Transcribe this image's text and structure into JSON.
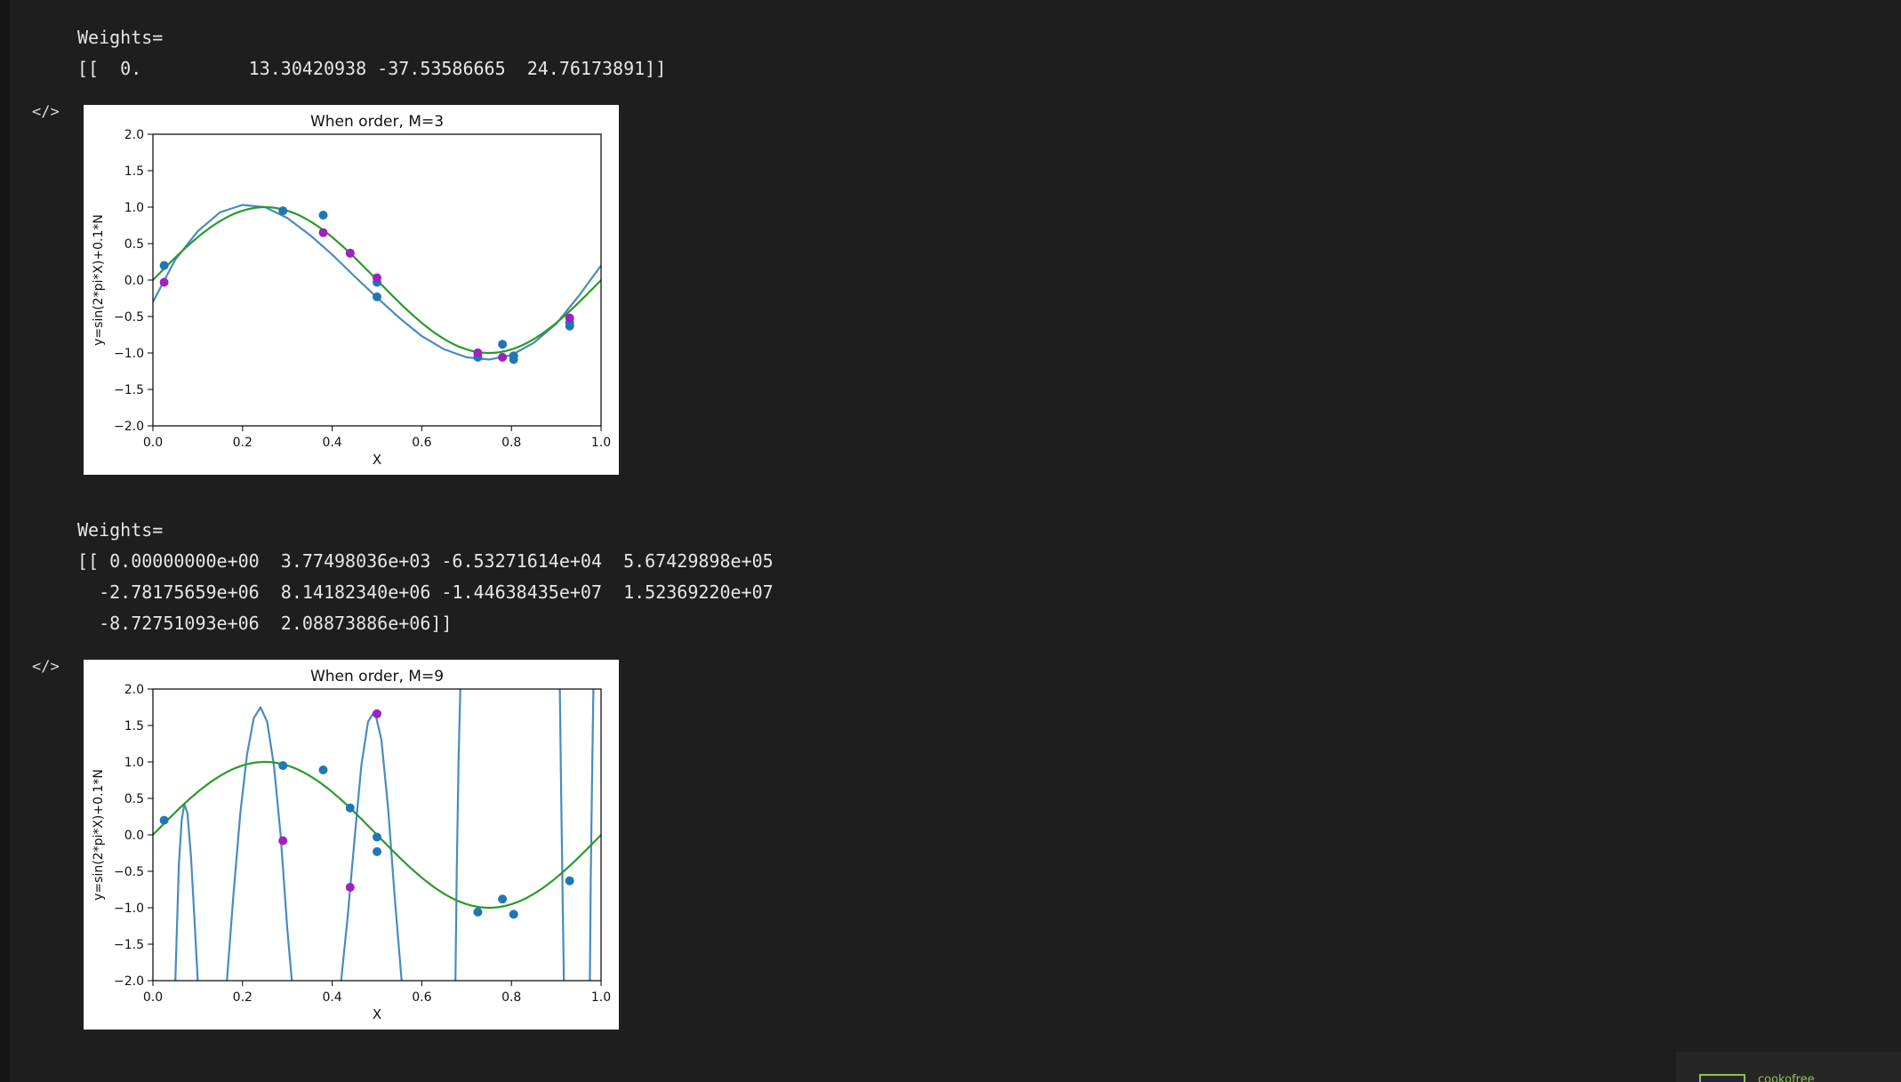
{
  "cell1": {
    "lines": [
      "Weights=",
      "[[  0.          13.30420938 -37.53586665  24.76173891]]"
    ],
    "toggle_icon": "</>"
  },
  "cell2": {
    "lines": [
      "Weights=",
      "[[ 0.00000000e+00  3.77498036e+03 -6.53271614e+04  5.67429898e+05",
      "  -2.78175659e+06  8.14182340e+06 -1.44638435e+07  1.52369220e+07",
      "  -8.72751093e+06  2.08873886e+06]]"
    ],
    "toggle_icon": "</>"
  },
  "colors": {
    "background": "#1e1e1e",
    "gutter": "#151515",
    "fit_curve": "#4a8bbf",
    "true_curve": "#2a9a2a",
    "train_points": "#1f77b4",
    "test_points": "#a020c0",
    "accent": "#8bc34a"
  },
  "corner_widget": {
    "label": "cookofree",
    "icon": "logo-icon"
  },
  "chart_data": [
    {
      "type": "line",
      "title": "When order, M=3",
      "xlabel": "X",
      "ylabel": "y=sin(2*pi*X)+0.1*N",
      "xlim": [
        0.0,
        1.0
      ],
      "ylim": [
        -2.0,
        2.0
      ],
      "xticks": [
        "0.0",
        "0.2",
        "0.4",
        "0.6",
        "0.8",
        "1.0"
      ],
      "yticks": [
        "2.0",
        "1.5",
        "1.0",
        "0.5",
        "0.0",
        "−0.5",
        "−1.0",
        "−1.5",
        "−2.0"
      ],
      "grid": false,
      "fit_weights": [
        0.0,
        13.30420938,
        -37.53586665,
        24.76173891
      ],
      "series": [
        {
          "kind": "fit-curve",
          "color": "#4a8bbf",
          "x": [
            0.0,
            0.05,
            0.1,
            0.15,
            0.2,
            0.25,
            0.3,
            0.35,
            0.4,
            0.45,
            0.5,
            0.55,
            0.6,
            0.65,
            0.7,
            0.75,
            0.8,
            0.85,
            0.9,
            0.95,
            1.0
          ],
          "y": [
            -0.3,
            0.28,
            0.67,
            0.93,
            1.03,
            1.0,
            0.85,
            0.62,
            0.35,
            0.05,
            -0.24,
            -0.52,
            -0.77,
            -0.95,
            -1.06,
            -1.09,
            -1.03,
            -0.86,
            -0.6,
            -0.22,
            0.2
          ]
        },
        {
          "kind": "true-curve",
          "color": "#2a9a2a",
          "function": "sin(2*pi*X)"
        },
        {
          "kind": "train-points",
          "color": "#1f77b4",
          "x": [
            0.025,
            0.29,
            0.38,
            0.44,
            0.5,
            0.5,
            0.725,
            0.725,
            0.78,
            0.805,
            0.805,
            0.93,
            0.93
          ],
          "y": [
            0.2,
            0.95,
            0.89,
            0.37,
            -0.03,
            -0.23,
            -1.0,
            -1.06,
            -0.88,
            -1.04,
            -1.09,
            -0.58,
            -0.63
          ]
        },
        {
          "kind": "test-points",
          "color": "#a020c0",
          "x": [
            0.025,
            0.38,
            0.44,
            0.5,
            0.725,
            0.78,
            0.93
          ],
          "y": [
            -0.03,
            0.65,
            0.37,
            0.03,
            -1.0,
            -1.06,
            -0.52
          ]
        }
      ]
    },
    {
      "type": "line",
      "title": "When order, M=9",
      "xlabel": "X",
      "ylabel": "y=sin(2*pi*X)+0.1*N",
      "xlim": [
        0.0,
        1.0
      ],
      "ylim": [
        -2.0,
        2.0
      ],
      "xticks": [
        "0.0",
        "0.2",
        "0.4",
        "0.6",
        "0.8",
        "1.0"
      ],
      "yticks": [
        "2.0",
        "1.5",
        "1.0",
        "0.5",
        "0.0",
        "−0.5",
        "−1.0",
        "−1.5",
        "−2.0"
      ],
      "grid": false,
      "fit_weights": [
        0.0,
        3774.98036,
        -65327.1614,
        567429.898,
        -2781756.59,
        8141823.4,
        -14463843.5,
        15236922.0,
        -8727510.93,
        2088738.86
      ],
      "series": [
        {
          "kind": "fit-curve",
          "color": "#4a8bbf",
          "segments": [
            {
              "x": [
                0.05,
                0.058,
                0.064,
                0.07,
                0.077,
                0.085,
                0.093,
                0.1
              ],
              "y": [
                -2.0,
                -0.4,
                0.2,
                0.42,
                0.3,
                -0.3,
                -1.2,
                -2.0
              ]
            },
            {
              "x": [
                0.165,
                0.18,
                0.195,
                0.21,
                0.225,
                0.24,
                0.255,
                0.27,
                0.285,
                0.3,
                0.31
              ],
              "y": [
                -2.0,
                -0.8,
                0.3,
                1.1,
                1.6,
                1.75,
                1.55,
                0.95,
                0.0,
                -1.3,
                -2.0
              ]
            },
            {
              "x": [
                0.42,
                0.435,
                0.45,
                0.465,
                0.48,
                0.495,
                0.51,
                0.525,
                0.54,
                0.555
              ],
              "y": [
                -2.0,
                -1.1,
                -0.05,
                0.95,
                1.55,
                1.7,
                1.3,
                0.35,
                -0.9,
                -2.0
              ]
            },
            {
              "x": [
                0.675,
                0.678,
                0.682,
                0.686
              ],
              "y": [
                -2.0,
                -0.5,
                1.0,
                2.0
              ]
            },
            {
              "x": [
                0.908,
                0.911,
                0.914,
                0.917
              ],
              "y": [
                2.0,
                0.6,
                -0.8,
                -2.0
              ]
            },
            {
              "x": [
                0.975,
                0.977,
                0.98,
                0.983
              ],
              "y": [
                -2.0,
                -0.6,
                0.8,
                2.0
              ]
            }
          ]
        },
        {
          "kind": "true-curve",
          "color": "#2a9a2a",
          "function": "sin(2*pi*X)"
        },
        {
          "kind": "train-points",
          "color": "#1f77b4",
          "x": [
            0.025,
            0.29,
            0.38,
            0.44,
            0.5,
            0.5,
            0.725,
            0.78,
            0.805,
            0.93
          ],
          "y": [
            0.2,
            0.95,
            0.89,
            0.37,
            -0.03,
            -0.23,
            -1.06,
            -0.88,
            -1.09,
            -0.63
          ]
        },
        {
          "kind": "test-points",
          "color": "#a020c0",
          "x": [
            0.29,
            0.44,
            0.5
          ],
          "y": [
            -0.08,
            -0.72,
            1.66
          ]
        }
      ]
    }
  ]
}
